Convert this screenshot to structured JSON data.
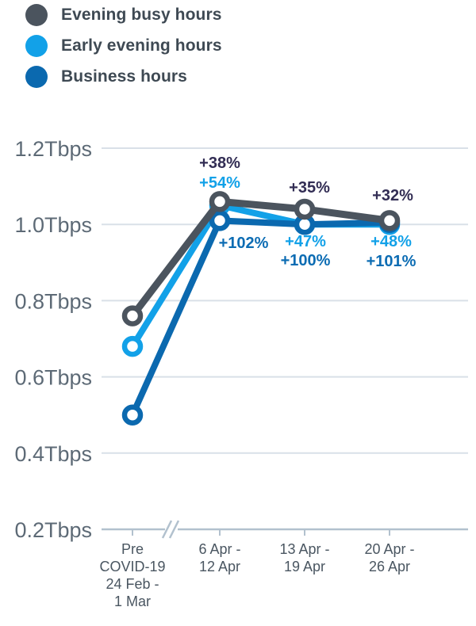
{
  "legend": {
    "items": [
      {
        "label": "Evening busy hours"
      },
      {
        "label": "Early evening hours"
      },
      {
        "label": "Business hours"
      }
    ]
  },
  "chart_data": {
    "type": "line",
    "title": "",
    "xlabel": "",
    "ylabel": "Tbps",
    "unit": "Tbps",
    "ylim": [
      0.2,
      1.2
    ],
    "ytick_step": 0.2,
    "ytick_labels": [
      "0.2Tbps",
      "0.4Tbps",
      "0.6Tbps",
      "0.8Tbps",
      "1.0Tbps",
      "1.2Tbps"
    ],
    "grid": true,
    "legend_position": "top-left",
    "x_axis_break_after_first_category": true,
    "categories": [
      "Pre COVID-19 24 Feb - 1 Mar",
      "6 Apr - 12 Apr",
      "13 Apr - 19 Apr",
      "20 Apr - 26 Apr"
    ],
    "categories_display": [
      "Pre\nCOVID-19\n24 Feb -\n1 Mar",
      "6 Apr -\n12 Apr",
      "13 Apr -\n19 Apr",
      "20 Apr -\n26 Apr"
    ],
    "series": [
      {
        "name": "Evening busy hours",
        "color": "#4b545e",
        "annotation_color": "#322d54",
        "values": [
          0.76,
          1.06,
          1.04,
          1.01
        ],
        "annotations": [
          "",
          "+38%",
          "+35%",
          "+32%"
        ]
      },
      {
        "name": "Early evening hours",
        "color": "#12a1e8",
        "annotation_color": "#12a1e8",
        "values": [
          0.68,
          1.05,
          1.0,
          1.0
        ],
        "annotations": [
          "",
          "+54%",
          "+47%",
          "+48%"
        ]
      },
      {
        "name": "Business hours",
        "color": "#0b69af",
        "annotation_color": "#0c6cb3",
        "values": [
          0.5,
          1.01,
          1.0,
          1.005
        ],
        "annotations": [
          "",
          "+102%",
          "+100%",
          "+101%"
        ]
      }
    ]
  }
}
